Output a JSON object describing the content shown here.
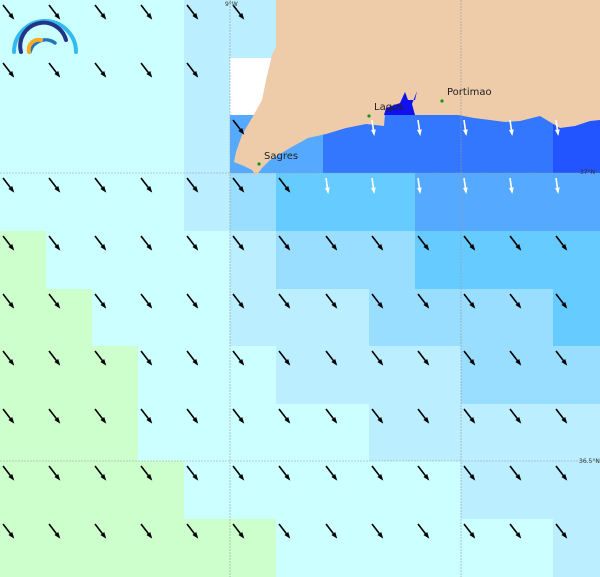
{
  "map": {
    "places": [
      {
        "name": "Sagres",
        "lon": -8.94,
        "lat": 37.01
      },
      {
        "name": "Lagos",
        "lon": -8.67,
        "lat": 37.1
      },
      {
        "name": "Portimao",
        "lon": -8.54,
        "lat": 37.13
      }
    ],
    "graticule": {
      "lon_label": "9°W",
      "lat_labels": [
        "37°N",
        "36.5°N"
      ]
    },
    "colors": {
      "A": "#ccffff",
      "B": "#bbeeff",
      "C": "#99ddff",
      "D": "#66ccff",
      "E": "#55aaff",
      "F": "#3377ff",
      "G": "#2255ff",
      "H": "#ccffcc",
      "W": "#ffffff",
      "land": "#eeccaa",
      "estuary": "#1111ee",
      "place_dot": "#119911"
    },
    "cells": [
      "AAAABBLLLLLLL",
      "AAAABWLLLLLLL",
      "AAAABEEFFFFFG",
      "AAAABCDDDEEEE",
      "HAAAABCCCDDDD",
      "HHAAABBBCCCCD",
      "HHHAAABBBBCCC",
      "HHHAAAAABBBBB",
      "HHHHAAAAAABBB",
      "HHHHHHAAAAAAB"
    ],
    "arrow_direction": "south-southeast"
  }
}
